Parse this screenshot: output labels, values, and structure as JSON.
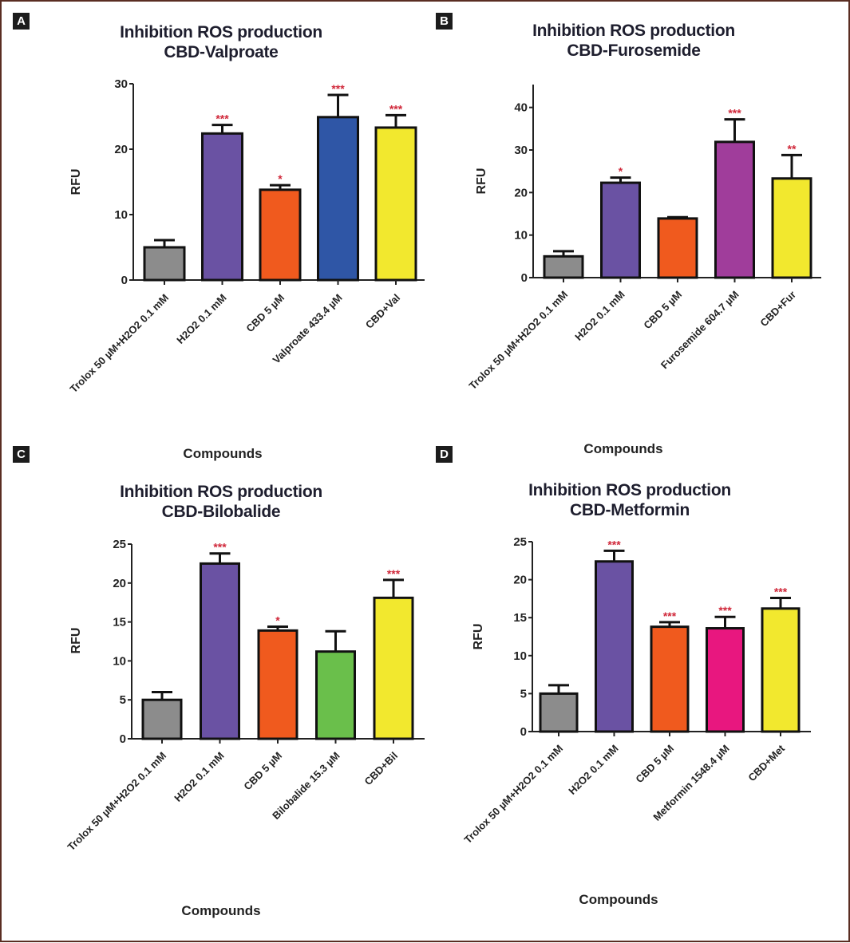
{
  "figure": {
    "panels": [
      "A",
      "B",
      "C",
      "D"
    ]
  },
  "chart_data": [
    {
      "type": "bar",
      "panel": "A",
      "title": "Inhibition ROS production",
      "subtitle": "CBD-Valproate",
      "xlabel": "Compounds",
      "ylabel": "RFU",
      "ylim": [
        0,
        30
      ],
      "yticks": [
        0,
        10,
        20,
        30
      ],
      "categories": [
        "Trolox 50 µM+H2O2 0.1 mM",
        "H2O2 0.1 mM",
        "CBD 5 µM",
        "Valproate 433.4 µM",
        "CBD+Val"
      ],
      "values": [
        5.0,
        22.4,
        13.8,
        24.9,
        23.3
      ],
      "error_upper": [
        6.1,
        23.7,
        14.5,
        28.3,
        25.2
      ],
      "significance": [
        "",
        "***",
        "*",
        "***",
        "***"
      ],
      "colors": [
        "#8c8c8c",
        "#6a52a3",
        "#f05a1e",
        "#2f56a6",
        "#f2e82e"
      ],
      "grid": false
    },
    {
      "type": "bar",
      "panel": "B",
      "title": "Inhibition ROS production",
      "subtitle": "CBD-Furosemide",
      "xlabel": "Compounds",
      "ylabel": "RFU",
      "ylim": [
        0,
        45
      ],
      "yticks": [
        0,
        10,
        20,
        30,
        40
      ],
      "categories": [
        "Trolox 50 µM+H2O2 0.1 mM",
        "H2O2 0.1 mM",
        "CBD 5 µM",
        "Furosemide 604.7 µM",
        "CBD+Fur"
      ],
      "values": [
        5.0,
        22.3,
        13.9,
        31.9,
        23.3
      ],
      "error_upper": [
        6.2,
        23.5,
        14.2,
        37.2,
        28.8
      ],
      "significance": [
        "",
        "*",
        "",
        "***",
        "**"
      ],
      "colors": [
        "#8c8c8c",
        "#6a52a3",
        "#f05a1e",
        "#a03d9b",
        "#f2e82e"
      ],
      "grid": false
    },
    {
      "type": "bar",
      "panel": "C",
      "title": "Inhibition ROS production",
      "subtitle": "CBD-Bilobalide",
      "xlabel": "Compounds",
      "ylabel": "RFU",
      "ylim": [
        0,
        25
      ],
      "yticks": [
        0,
        5,
        10,
        15,
        20,
        25
      ],
      "categories": [
        "Trolox 50 µM+H2O2 0.1 mM",
        "H2O2 0.1 mM",
        "CBD 5 µM",
        "Bilobalide 15.3 µM",
        "CBD+Bil"
      ],
      "values": [
        5.0,
        22.5,
        13.9,
        11.2,
        18.1
      ],
      "error_upper": [
        6.0,
        23.8,
        14.4,
        13.8,
        20.4
      ],
      "significance": [
        "",
        "***",
        "*",
        "",
        "***"
      ],
      "colors": [
        "#8c8c8c",
        "#6a52a3",
        "#f05a1e",
        "#6abf4b",
        "#f2e82e"
      ],
      "grid": false
    },
    {
      "type": "bar",
      "panel": "D",
      "title": "Inhibition ROS production",
      "subtitle": "CBD-Metformin",
      "xlabel": "Compounds",
      "ylabel": "RFU",
      "ylim": [
        0,
        25
      ],
      "yticks": [
        0,
        5,
        10,
        15,
        20,
        25
      ],
      "categories": [
        "Trolox 50 µM+H2O2 0.1 mM",
        "H2O2 0.1 mM",
        "CBD 5 µM",
        "Metformin 1548.4 µM",
        "CBD+Met"
      ],
      "values": [
        5.0,
        22.4,
        13.8,
        13.6,
        16.2
      ],
      "error_upper": [
        6.1,
        23.8,
        14.4,
        15.1,
        17.6
      ],
      "significance": [
        "",
        "***",
        "***",
        "***",
        "***"
      ],
      "colors": [
        "#8c8c8c",
        "#6a52a3",
        "#f05a1e",
        "#e8177f",
        "#f2e82e"
      ],
      "grid": false
    }
  ]
}
